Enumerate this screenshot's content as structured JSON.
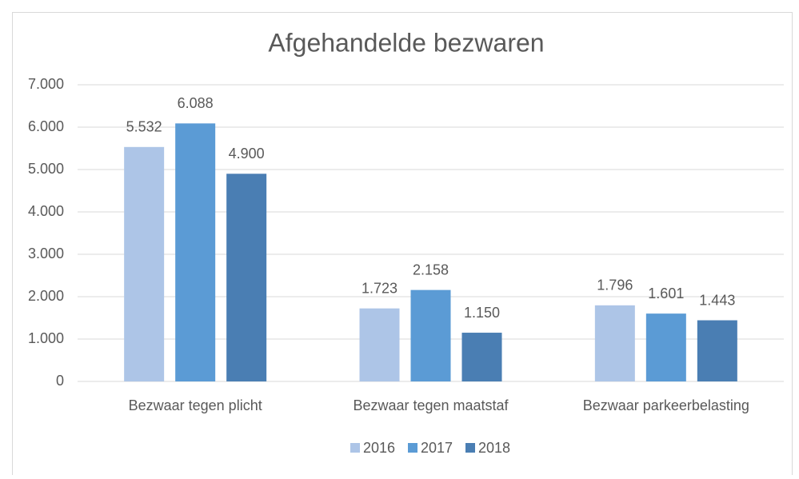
{
  "chart_data": {
    "type": "bar",
    "title": "Afgehandelde bezwaren",
    "categories": [
      "Bezwaar tegen plicht",
      "Bezwaar tegen maatstaf",
      "Bezwaar parkeerbelasting"
    ],
    "series": [
      {
        "name": "2016",
        "color": "#adc5e7",
        "values": [
          5532,
          1723,
          1796
        ],
        "value_labels": [
          "5.532",
          "1.723",
          "1.796"
        ]
      },
      {
        "name": "2017",
        "color": "#5b9bd5",
        "values": [
          6088,
          2158,
          1601
        ],
        "value_labels": [
          "6.088",
          "2.158",
          "1.601"
        ]
      },
      {
        "name": "2018",
        "color": "#4a7eb3",
        "values": [
          4900,
          1150,
          1443
        ],
        "value_labels": [
          "4.900",
          "1.150",
          "1.443"
        ]
      }
    ],
    "ylim": [
      0,
      7000
    ],
    "yticks": [
      0,
      {
        "value": 1000,
        "label": "1.000"
      },
      {
        "value": 2000,
        "label": "2.000"
      },
      {
        "value": 3000,
        "label": "3.000"
      },
      {
        "value": 4000,
        "label": "4.000"
      },
      {
        "value": 5000,
        "label": "5.000"
      },
      {
        "value": 6000,
        "label": "6.000"
      },
      {
        "value": 7000,
        "label": "7.000"
      }
    ],
    "grid": true,
    "legend": "bottom"
  }
}
